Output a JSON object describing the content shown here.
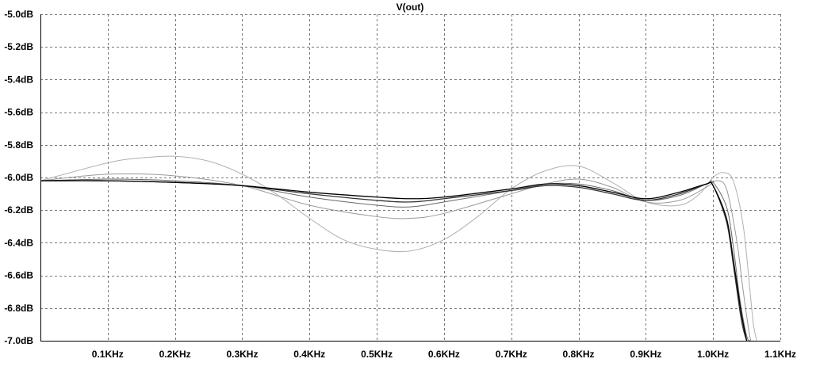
{
  "chart_data": {
    "type": "line",
    "title": "V(out)",
    "x_scale": "linear",
    "x_unit": "Hz",
    "xlim": [
      0,
      1100
    ],
    "ylim": [
      -7.0,
      -5.0
    ],
    "x_tick_values": [
      100,
      200,
      300,
      400,
      500,
      600,
      700,
      800,
      900,
      1000,
      1100
    ],
    "x_tick_labels": [
      "0.1KHz",
      "0.2KHz",
      "0.3KHz",
      "0.4KHz",
      "0.5KHz",
      "0.6KHz",
      "0.7KHz",
      "0.8KHz",
      "0.9KHz",
      "1.0KHz",
      "1.1KHz"
    ],
    "y_tick_values": [
      -5.0,
      -5.2,
      -5.4,
      -5.6,
      -5.8,
      -6.0,
      -6.2,
      -6.4,
      -6.6,
      -6.8,
      -7.0
    ],
    "y_tick_labels": [
      "-5.0dB",
      "-5.2dB",
      "-5.4dB",
      "-5.6dB",
      "-5.8dB",
      "-6.0dB",
      "-6.2dB",
      "-6.4dB",
      "-6.6dB",
      "-6.8dB",
      "-7.0dB"
    ],
    "grid": true,
    "grid_style": "dotted",
    "colors": {
      "dark_trace": "#000000",
      "mid_trace": "#666666",
      "light_trace": "#999999",
      "faint_trace": "#b0b0b0",
      "grid": "#777777",
      "axis": "#000000"
    },
    "series": [
      {
        "color": "#000000",
        "x": [
          0,
          100,
          200,
          300,
          400,
          500,
          550,
          600,
          700,
          750,
          800,
          850,
          900,
          950,
          990,
          1000,
          1020,
          1030,
          1040,
          1045,
          1050
        ],
        "y": [
          -6.02,
          -6.02,
          -6.03,
          -6.05,
          -6.09,
          -6.12,
          -6.13,
          -6.12,
          -6.07,
          -6.04,
          -6.05,
          -6.09,
          -6.13,
          -6.09,
          -6.04,
          -6.05,
          -6.25,
          -6.5,
          -6.78,
          -6.9,
          -7.0
        ]
      },
      {
        "color": "#333333",
        "x": [
          0,
          100,
          200,
          300,
          400,
          500,
          550,
          600,
          700,
          750,
          800,
          850,
          900,
          950,
          990,
          1000,
          1020,
          1030,
          1040,
          1045,
          1050
        ],
        "y": [
          -6.02,
          -6.02,
          -6.03,
          -6.05,
          -6.1,
          -6.14,
          -6.15,
          -6.13,
          -6.08,
          -6.05,
          -6.06,
          -6.1,
          -6.14,
          -6.1,
          -6.04,
          -6.05,
          -6.27,
          -6.53,
          -6.82,
          -6.93,
          -7.0
        ]
      },
      {
        "color": "#666666",
        "x": [
          0,
          100,
          200,
          300,
          400,
          500,
          550,
          600,
          700,
          750,
          800,
          850,
          900,
          950,
          990,
          1000,
          1020,
          1030,
          1040,
          1050,
          1055
        ],
        "y": [
          -6.02,
          -6.01,
          -6.02,
          -6.05,
          -6.12,
          -6.17,
          -6.18,
          -6.15,
          -6.08,
          -6.04,
          -6.04,
          -6.08,
          -6.14,
          -6.11,
          -6.04,
          -6.03,
          -6.18,
          -6.42,
          -6.75,
          -6.97,
          -7.0
        ]
      },
      {
        "color": "#999999",
        "x": [
          0,
          100,
          200,
          300,
          400,
          500,
          550,
          600,
          700,
          750,
          800,
          850,
          900,
          950,
          990,
          1005,
          1020,
          1035,
          1045,
          1055,
          1060
        ],
        "y": [
          -6.02,
          -5.98,
          -5.99,
          -6.05,
          -6.17,
          -6.24,
          -6.25,
          -6.22,
          -6.1,
          -6.04,
          -6.01,
          -6.06,
          -6.15,
          -6.14,
          -6.06,
          -6.02,
          -6.07,
          -6.38,
          -6.7,
          -6.98,
          -7.0
        ]
      },
      {
        "color": "#b0b0b0",
        "x": [
          0,
          100,
          150,
          200,
          250,
          300,
          350,
          400,
          450,
          500,
          550,
          600,
          650,
          700,
          750,
          800,
          850,
          900,
          950,
          980,
          1000,
          1015,
          1030,
          1045,
          1055,
          1060,
          1065
        ],
        "y": [
          -6.02,
          -5.91,
          -5.88,
          -5.87,
          -5.9,
          -5.98,
          -6.1,
          -6.25,
          -6.38,
          -6.44,
          -6.45,
          -6.38,
          -6.24,
          -6.07,
          -5.96,
          -5.93,
          -6.03,
          -6.15,
          -6.17,
          -6.1,
          -6.0,
          -5.97,
          -6.02,
          -6.3,
          -6.7,
          -6.9,
          -7.0
        ]
      }
    ]
  }
}
